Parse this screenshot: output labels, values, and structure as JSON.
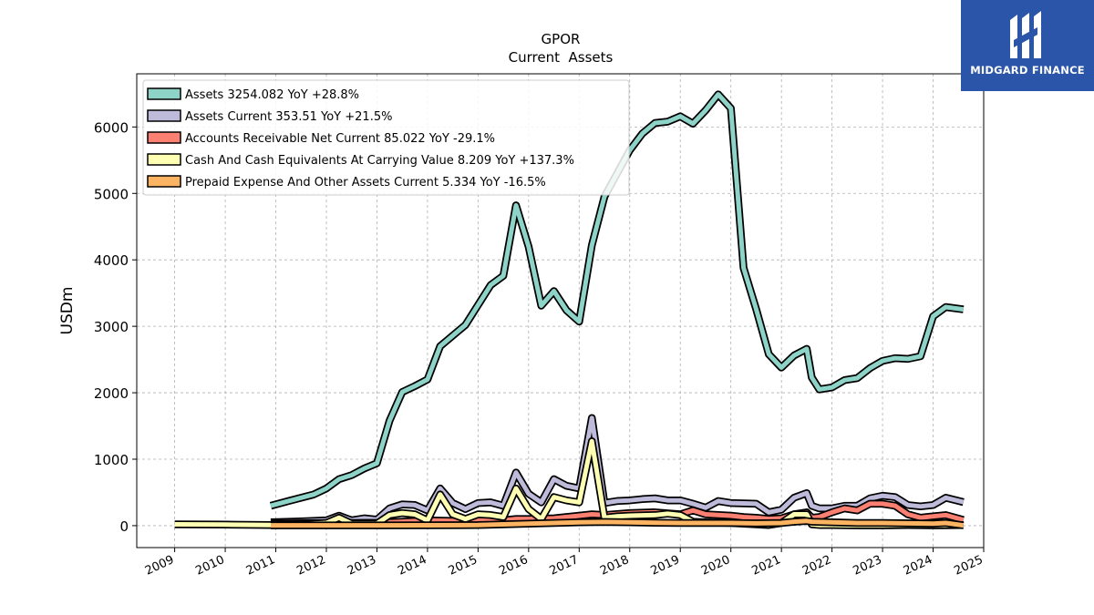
{
  "brand": {
    "name": "MIDGARD FINANCE",
    "bg_color": "#2a55a8"
  },
  "chart_data": {
    "type": "line",
    "title": "GPOR",
    "subtitle": "Current  Assets",
    "ylabel": "USDm",
    "xlim": [
      2008.25,
      2025.0
    ],
    "ylim": [
      -330,
      6800
    ],
    "x_ticks": [
      "2009",
      "2010",
      "2011",
      "2012",
      "2013",
      "2014",
      "2015",
      "2016",
      "2017",
      "2018",
      "2019",
      "2020",
      "2021",
      "2022",
      "2023",
      "2024",
      "2025"
    ],
    "y_ticks": [
      0,
      1000,
      2000,
      3000,
      4000,
      5000,
      6000
    ],
    "grid": true,
    "legend_position": "top-left",
    "series": [
      {
        "name": "Assets",
        "legend": "Assets  3254.082 YoY +28.8%",
        "color": "#8dd3c7",
        "points": [
          [
            2010.9,
            300
          ],
          [
            2011.25,
            370
          ],
          [
            2011.75,
            470
          ],
          [
            2012.0,
            560
          ],
          [
            2012.25,
            700
          ],
          [
            2012.5,
            760
          ],
          [
            2012.75,
            860
          ],
          [
            2013.0,
            940
          ],
          [
            2013.25,
            1580
          ],
          [
            2013.5,
            2010
          ],
          [
            2013.75,
            2100
          ],
          [
            2014.0,
            2200
          ],
          [
            2014.25,
            2700
          ],
          [
            2014.75,
            3020
          ],
          [
            2015.25,
            3620
          ],
          [
            2015.5,
            3760
          ],
          [
            2015.75,
            4820
          ],
          [
            2016.0,
            4200
          ],
          [
            2016.25,
            3310
          ],
          [
            2016.5,
            3530
          ],
          [
            2016.75,
            3240
          ],
          [
            2017.0,
            3070
          ],
          [
            2017.25,
            4220
          ],
          [
            2017.5,
            4950
          ],
          [
            2017.75,
            5300
          ],
          [
            2018.0,
            5650
          ],
          [
            2018.25,
            5900
          ],
          [
            2018.5,
            6060
          ],
          [
            2018.75,
            6080
          ],
          [
            2019.0,
            6160
          ],
          [
            2019.25,
            6050
          ],
          [
            2019.5,
            6250
          ],
          [
            2019.75,
            6490
          ],
          [
            2020.0,
            6280
          ],
          [
            2020.25,
            3880
          ],
          [
            2020.5,
            3260
          ],
          [
            2020.75,
            2580
          ],
          [
            2021.0,
            2380
          ],
          [
            2021.25,
            2560
          ],
          [
            2021.5,
            2660
          ],
          [
            2021.6,
            2230
          ],
          [
            2021.75,
            2050
          ],
          [
            2022.0,
            2080
          ],
          [
            2022.25,
            2190
          ],
          [
            2022.5,
            2220
          ],
          [
            2022.75,
            2370
          ],
          [
            2023.0,
            2480
          ],
          [
            2023.25,
            2520
          ],
          [
            2023.5,
            2510
          ],
          [
            2023.75,
            2550
          ],
          [
            2024.0,
            3150
          ],
          [
            2024.25,
            3290
          ],
          [
            2024.6,
            3254
          ]
        ]
      },
      {
        "name": "Assets Current",
        "legend": "Assets Current  353.51 YoY +21.5%",
        "color": "#bebada",
        "points": [
          [
            2010.9,
            50
          ],
          [
            2011.5,
            65
          ],
          [
            2012.0,
            80
          ],
          [
            2012.25,
            150
          ],
          [
            2012.5,
            80
          ],
          [
            2012.75,
            110
          ],
          [
            2013.0,
            90
          ],
          [
            2013.25,
            260
          ],
          [
            2013.5,
            320
          ],
          [
            2013.75,
            310
          ],
          [
            2014.0,
            230
          ],
          [
            2014.25,
            560
          ],
          [
            2014.5,
            340
          ],
          [
            2014.75,
            250
          ],
          [
            2015.0,
            340
          ],
          [
            2015.25,
            350
          ],
          [
            2015.5,
            300
          ],
          [
            2015.75,
            800
          ],
          [
            2016.0,
            480
          ],
          [
            2016.25,
            350
          ],
          [
            2016.5,
            700
          ],
          [
            2016.75,
            600
          ],
          [
            2017.0,
            560
          ],
          [
            2017.25,
            1620
          ],
          [
            2017.5,
            340
          ],
          [
            2017.75,
            370
          ],
          [
            2018.0,
            380
          ],
          [
            2018.25,
            400
          ],
          [
            2018.5,
            410
          ],
          [
            2018.75,
            380
          ],
          [
            2019.0,
            380
          ],
          [
            2019.25,
            330
          ],
          [
            2019.5,
            270
          ],
          [
            2019.75,
            370
          ],
          [
            2020.0,
            340
          ],
          [
            2020.5,
            330
          ],
          [
            2020.75,
            200
          ],
          [
            2021.0,
            240
          ],
          [
            2021.25,
            420
          ],
          [
            2021.5,
            490
          ],
          [
            2021.6,
            300
          ],
          [
            2021.75,
            260
          ],
          [
            2022.0,
            260
          ],
          [
            2022.25,
            300
          ],
          [
            2022.5,
            300
          ],
          [
            2022.75,
            410
          ],
          [
            2023.0,
            450
          ],
          [
            2023.25,
            430
          ],
          [
            2023.5,
            310
          ],
          [
            2023.75,
            290
          ],
          [
            2024.0,
            310
          ],
          [
            2024.25,
            420
          ],
          [
            2024.6,
            354
          ]
        ]
      },
      {
        "name": "Accounts Receivable Net Current",
        "legend": "Accounts Receivable Net Current  85.022 YoY -29.1%",
        "color": "#fb8072",
        "points": [
          [
            2010.9,
            30
          ],
          [
            2012.0,
            40
          ],
          [
            2012.25,
            60
          ],
          [
            2012.5,
            40
          ],
          [
            2013.0,
            45
          ],
          [
            2013.5,
            60
          ],
          [
            2014.0,
            80
          ],
          [
            2014.5,
            70
          ],
          [
            2015.0,
            90
          ],
          [
            2015.5,
            80
          ],
          [
            2015.75,
            100
          ],
          [
            2016.0,
            100
          ],
          [
            2016.5,
            110
          ],
          [
            2017.0,
            150
          ],
          [
            2017.25,
            170
          ],
          [
            2017.5,
            160
          ],
          [
            2018.0,
            190
          ],
          [
            2018.5,
            200
          ],
          [
            2019.0,
            170
          ],
          [
            2019.25,
            230
          ],
          [
            2019.5,
            170
          ],
          [
            2020.0,
            150
          ],
          [
            2020.25,
            130
          ],
          [
            2020.5,
            120
          ],
          [
            2020.75,
            100
          ],
          [
            2021.0,
            110
          ],
          [
            2021.25,
            170
          ],
          [
            2021.5,
            200
          ],
          [
            2021.6,
            120
          ],
          [
            2021.75,
            130
          ],
          [
            2022.0,
            200
          ],
          [
            2022.25,
            260
          ],
          [
            2022.5,
            230
          ],
          [
            2022.75,
            330
          ],
          [
            2023.0,
            330
          ],
          [
            2023.25,
            300
          ],
          [
            2023.5,
            170
          ],
          [
            2023.75,
            120
          ],
          [
            2024.0,
            140
          ],
          [
            2024.25,
            160
          ],
          [
            2024.6,
            85
          ]
        ]
      },
      {
        "name": "Cash And Cash Equivalents At Carrying Value",
        "legend": "Cash And Cash Equivalents At Carrying Value  8.209 YoY +137.3%",
        "color": "#ffffb3",
        "points": [
          [
            2009.0,
            20
          ],
          [
            2010.0,
            15
          ],
          [
            2010.9,
            10
          ],
          [
            2011.5,
            20
          ],
          [
            2012.0,
            40
          ],
          [
            2012.25,
            120
          ],
          [
            2012.5,
            30
          ],
          [
            2013.0,
            30
          ],
          [
            2013.25,
            160
          ],
          [
            2013.5,
            190
          ],
          [
            2013.75,
            170
          ],
          [
            2014.0,
            80
          ],
          [
            2014.25,
            470
          ],
          [
            2014.5,
            170
          ],
          [
            2014.75,
            100
          ],
          [
            2015.0,
            170
          ],
          [
            2015.25,
            160
          ],
          [
            2015.5,
            130
          ],
          [
            2015.75,
            560
          ],
          [
            2016.0,
            250
          ],
          [
            2016.25,
            100
          ],
          [
            2016.5,
            430
          ],
          [
            2016.75,
            380
          ],
          [
            2017.0,
            350
          ],
          [
            2017.25,
            1270
          ],
          [
            2017.5,
            120
          ],
          [
            2017.75,
            140
          ],
          [
            2018.0,
            150
          ],
          [
            2018.5,
            160
          ],
          [
            2018.75,
            180
          ],
          [
            2019.0,
            160
          ],
          [
            2019.25,
            60
          ],
          [
            2019.5,
            50
          ],
          [
            2020.0,
            40
          ],
          [
            2020.5,
            20
          ],
          [
            2020.75,
            10
          ],
          [
            2021.0,
            40
          ],
          [
            2021.25,
            170
          ],
          [
            2021.5,
            170
          ],
          [
            2021.6,
            20
          ],
          [
            2021.75,
            10
          ],
          [
            2022.0,
            10
          ],
          [
            2022.5,
            5
          ],
          [
            2023.0,
            5
          ],
          [
            2023.5,
            8
          ],
          [
            2024.0,
            5
          ],
          [
            2024.6,
            8
          ]
        ]
      },
      {
        "name": "Prepaid Expense And Other Assets Current",
        "legend": "Prepaid Expense And Other Assets Current  5.334 YoY -16.5%",
        "color": "#fdb462",
        "points": [
          [
            2010.9,
            5
          ],
          [
            2012.0,
            5
          ],
          [
            2013.0,
            5
          ],
          [
            2014.0,
            6
          ],
          [
            2015.0,
            8
          ],
          [
            2015.5,
            20
          ],
          [
            2016.0,
            30
          ],
          [
            2016.5,
            40
          ],
          [
            2017.0,
            50
          ],
          [
            2017.5,
            55
          ],
          [
            2018.0,
            50
          ],
          [
            2018.5,
            45
          ],
          [
            2019.0,
            40
          ],
          [
            2019.5,
            40
          ],
          [
            2020.0,
            40
          ],
          [
            2020.5,
            35
          ],
          [
            2021.0,
            40
          ],
          [
            2021.25,
            60
          ],
          [
            2021.5,
            70
          ],
          [
            2021.6,
            60
          ],
          [
            2022.0,
            50
          ],
          [
            2022.5,
            40
          ],
          [
            2023.0,
            40
          ],
          [
            2023.5,
            35
          ],
          [
            2024.0,
            30
          ],
          [
            2024.25,
            40
          ],
          [
            2024.6,
            5
          ]
        ]
      }
    ]
  }
}
